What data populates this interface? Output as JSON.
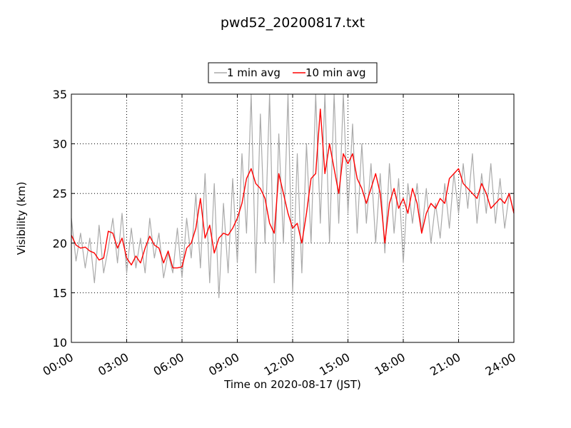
{
  "chart_data": {
    "type": "line",
    "title": "pwd52_20200817.txt",
    "xlabel": "Time on 2020-08-17 (JST)",
    "ylabel": "Visibility (km)",
    "xlim_hours": [
      0,
      24
    ],
    "ylim": [
      10,
      35
    ],
    "x_tick_labels": [
      "00:00",
      "03:00",
      "06:00",
      "09:00",
      "12:00",
      "15:00",
      "18:00",
      "21:00",
      "24:00"
    ],
    "y_tick_labels": [
      "10",
      "15",
      "20",
      "25",
      "30",
      "35"
    ],
    "grid": true,
    "legend_placement": "top-center",
    "series": [
      {
        "name": "1 min avg",
        "color": "#aaaaaa",
        "x_hours": [
          0,
          0.25,
          0.5,
          0.75,
          1,
          1.25,
          1.5,
          1.75,
          2,
          2.25,
          2.5,
          2.75,
          3,
          3.25,
          3.5,
          3.75,
          4,
          4.25,
          4.5,
          4.75,
          5,
          5.25,
          5.5,
          5.75,
          6,
          6.25,
          6.5,
          6.75,
          7,
          7.25,
          7.5,
          7.75,
          8,
          8.25,
          8.5,
          8.75,
          9,
          9.25,
          9.5,
          9.75,
          10,
          10.25,
          10.5,
          10.75,
          11,
          11.25,
          11.5,
          11.75,
          12,
          12.25,
          12.5,
          12.75,
          13,
          13.25,
          13.5,
          13.75,
          14,
          14.25,
          14.5,
          14.75,
          15,
          15.25,
          15.5,
          15.75,
          16,
          16.25,
          16.5,
          16.75,
          17,
          17.25,
          17.5,
          17.75,
          18,
          18.25,
          18.5,
          18.75,
          19,
          19.25,
          19.5,
          19.75,
          20,
          20.25,
          20.5,
          20.75,
          21,
          21.25,
          21.5,
          21.75,
          22,
          22.25,
          22.5,
          22.75,
          23,
          23.25,
          23.5,
          23.75,
          24
        ],
        "values": [
          22.5,
          18.2,
          21.0,
          17.5,
          20.5,
          16.0,
          21.8,
          17.0,
          19.5,
          22.5,
          18.0,
          23.0,
          17.0,
          21.5,
          17.5,
          20.5,
          17.0,
          22.5,
          18.5,
          21.0,
          16.5,
          19.0,
          17.0,
          21.5,
          16.5,
          22.5,
          18.5,
          25.0,
          17.5,
          27.0,
          16.0,
          26.0,
          14.5,
          24.0,
          17.0,
          26.5,
          18.0,
          29.0,
          21.0,
          35.0,
          17.0,
          33.0,
          20.0,
          35.0,
          16.0,
          31.0,
          20.0,
          35.0,
          15.0,
          29.0,
          17.0,
          30.0,
          20.0,
          35.0,
          22.0,
          35.0,
          20.0,
          35.0,
          22.0,
          35.0,
          23.0,
          32.0,
          21.0,
          30.0,
          22.0,
          28.0,
          20.0,
          27.0,
          19.0,
          28.0,
          21.0,
          26.5,
          18.0,
          26.0,
          22.0,
          26.0,
          21.0,
          25.5,
          20.0,
          24.0,
          20.5,
          26.0,
          21.5,
          27.0,
          23.0,
          28.0,
          23.5,
          29.0,
          22.0,
          27.0,
          23.0,
          28.0,
          22.0,
          26.5,
          21.5,
          25.0,
          23.0
        ]
      },
      {
        "name": "10 min avg",
        "color": "#ff0000",
        "x_hours": [
          0,
          0.25,
          0.5,
          0.75,
          1,
          1.25,
          1.5,
          1.75,
          2,
          2.25,
          2.5,
          2.75,
          3,
          3.25,
          3.5,
          3.75,
          4,
          4.25,
          4.5,
          4.75,
          5,
          5.25,
          5.5,
          5.75,
          6,
          6.25,
          6.5,
          6.75,
          7,
          7.25,
          7.5,
          7.75,
          8,
          8.25,
          8.5,
          8.75,
          9,
          9.25,
          9.5,
          9.75,
          10,
          10.25,
          10.5,
          10.75,
          11,
          11.25,
          11.5,
          11.75,
          12,
          12.25,
          12.5,
          12.75,
          13,
          13.25,
          13.5,
          13.75,
          14,
          14.25,
          14.5,
          14.75,
          15,
          15.25,
          15.5,
          15.75,
          16,
          16.25,
          16.5,
          16.75,
          17,
          17.25,
          17.5,
          17.75,
          18,
          18.25,
          18.5,
          18.75,
          19,
          19.25,
          19.5,
          19.75,
          20,
          20.25,
          20.5,
          20.75,
          21,
          21.25,
          21.5,
          21.75,
          22,
          22.25,
          22.5,
          22.75,
          23,
          23.25,
          23.5,
          23.75,
          24
        ],
        "values": [
          20.8,
          19.8,
          19.5,
          19.6,
          19.2,
          19.0,
          18.3,
          18.5,
          21.2,
          21.0,
          19.5,
          20.5,
          18.5,
          17.8,
          18.7,
          18.0,
          19.5,
          20.7,
          19.8,
          19.5,
          18.0,
          19.2,
          17.5,
          17.5,
          17.6,
          19.5,
          20.0,
          21.5,
          24.5,
          20.5,
          21.8,
          19.0,
          20.5,
          21.0,
          20.8,
          21.5,
          22.5,
          24.0,
          26.5,
          27.5,
          26.0,
          25.5,
          24.5,
          22.0,
          21.0,
          27.0,
          25.0,
          23.0,
          21.5,
          22.0,
          20.0,
          23.0,
          26.5,
          27.0,
          33.5,
          27.0,
          30.0,
          27.5,
          25.0,
          29.0,
          28.0,
          29.0,
          26.5,
          25.5,
          24.0,
          25.5,
          27.0,
          25.0,
          20.0,
          24.0,
          25.5,
          23.5,
          24.5,
          23.0,
          25.5,
          24.0,
          21.0,
          23.0,
          24.0,
          23.5,
          24.5,
          24.0,
          26.5,
          27.0,
          27.5,
          26.0,
          25.5,
          25.0,
          24.5,
          26.0,
          25.0,
          23.5,
          24.0,
          24.5,
          24.0,
          25.0,
          23.0
        ]
      }
    ]
  }
}
